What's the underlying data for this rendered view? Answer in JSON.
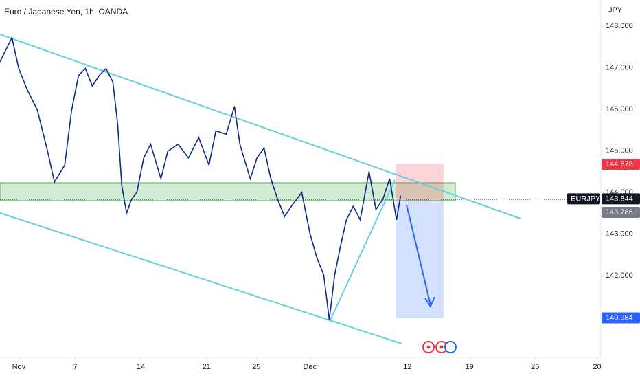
{
  "chart_data": {
    "type": "line",
    "title": "Euro / Japanese Yen, 1h, OANDA",
    "currency": "JPY",
    "symbol": "EURJPY",
    "x": [
      -2.0,
      -1.46,
      -0.73,
      0,
      0.88,
      1.98,
      3.07,
      3.8,
      4.9,
      5.63,
      6.36,
      7.09,
      7.83,
      8.56,
      9.29,
      10.02,
      10.53,
      10.97,
      11.48,
      12.0,
      12.58,
      13.31,
      14.04,
      15.14,
      15.87,
      16.97,
      18.07,
      19.17,
      20.26,
      20.99,
      22.09,
      22.97,
      23.55,
      24.65,
      25.38,
      26.12,
      26.85,
      27.58,
      28.31,
      29.04,
      30.14,
      31.02,
      31.75,
      32.48,
      33.07,
      33.65,
      34.24,
      34.89,
      35.63,
      36.36,
      37.31,
      38.04,
      38.77,
      39.5,
      40.23,
      40.67
    ],
    "series": [
      {
        "name": "EURJPY",
        "color": "#0d2a8a",
        "values": [
          147.14,
          147.39,
          147.72,
          146.98,
          146.48,
          145.98,
          144.99,
          144.25,
          144.66,
          145.98,
          146.81,
          146.98,
          146.56,
          146.81,
          146.98,
          146.66,
          145.65,
          144.17,
          143.5,
          143.83,
          144.0,
          144.83,
          145.16,
          144.33,
          144.99,
          145.16,
          144.83,
          145.32,
          144.66,
          145.48,
          145.4,
          146.07,
          145.16,
          144.33,
          144.83,
          145.07,
          144.33,
          143.83,
          143.42,
          143.67,
          144.0,
          143.01,
          142.43,
          142.02,
          140.94,
          142.02,
          142.68,
          143.34,
          143.67,
          143.34,
          144.5,
          143.59,
          143.83,
          144.33,
          143.34,
          143.92
        ]
      }
    ],
    "xlim": [
      -2,
      62
    ],
    "xticks": [
      {
        "value": 0,
        "label": "Nov"
      },
      {
        "value": 6,
        "label": "7"
      },
      {
        "value": 13,
        "label": "14"
      },
      {
        "value": 20,
        "label": "21"
      },
      {
        "value": 25.3,
        "label": "25"
      },
      {
        "value": 31.0,
        "label": "Dec"
      },
      {
        "value": 41.4,
        "label": "12"
      },
      {
        "value": 48,
        "label": "19"
      },
      {
        "value": 55,
        "label": "26"
      },
      {
        "value": 61.6,
        "label": "20"
      }
    ],
    "ylim": [
      140.033,
      148.628
    ],
    "yticks": [
      {
        "value": 142,
        "label": "142.000"
      },
      {
        "value": 143,
        "label": "143.000"
      },
      {
        "value": 144,
        "label": "144.000"
      },
      {
        "value": 145,
        "label": "145.000"
      },
      {
        "value": 146,
        "label": "146.000"
      },
      {
        "value": 147,
        "label": "147.000"
      },
      {
        "value": 148,
        "label": "148.000"
      }
    ],
    "price_labels": [
      {
        "value": 144.678,
        "color": "#f23645"
      },
      {
        "value": 143.844,
        "color": "#131722"
      },
      {
        "value": 143.786,
        "color": "#787b86"
      },
      {
        "value": 140.984,
        "color": "#2962ff"
      }
    ]
  }
}
